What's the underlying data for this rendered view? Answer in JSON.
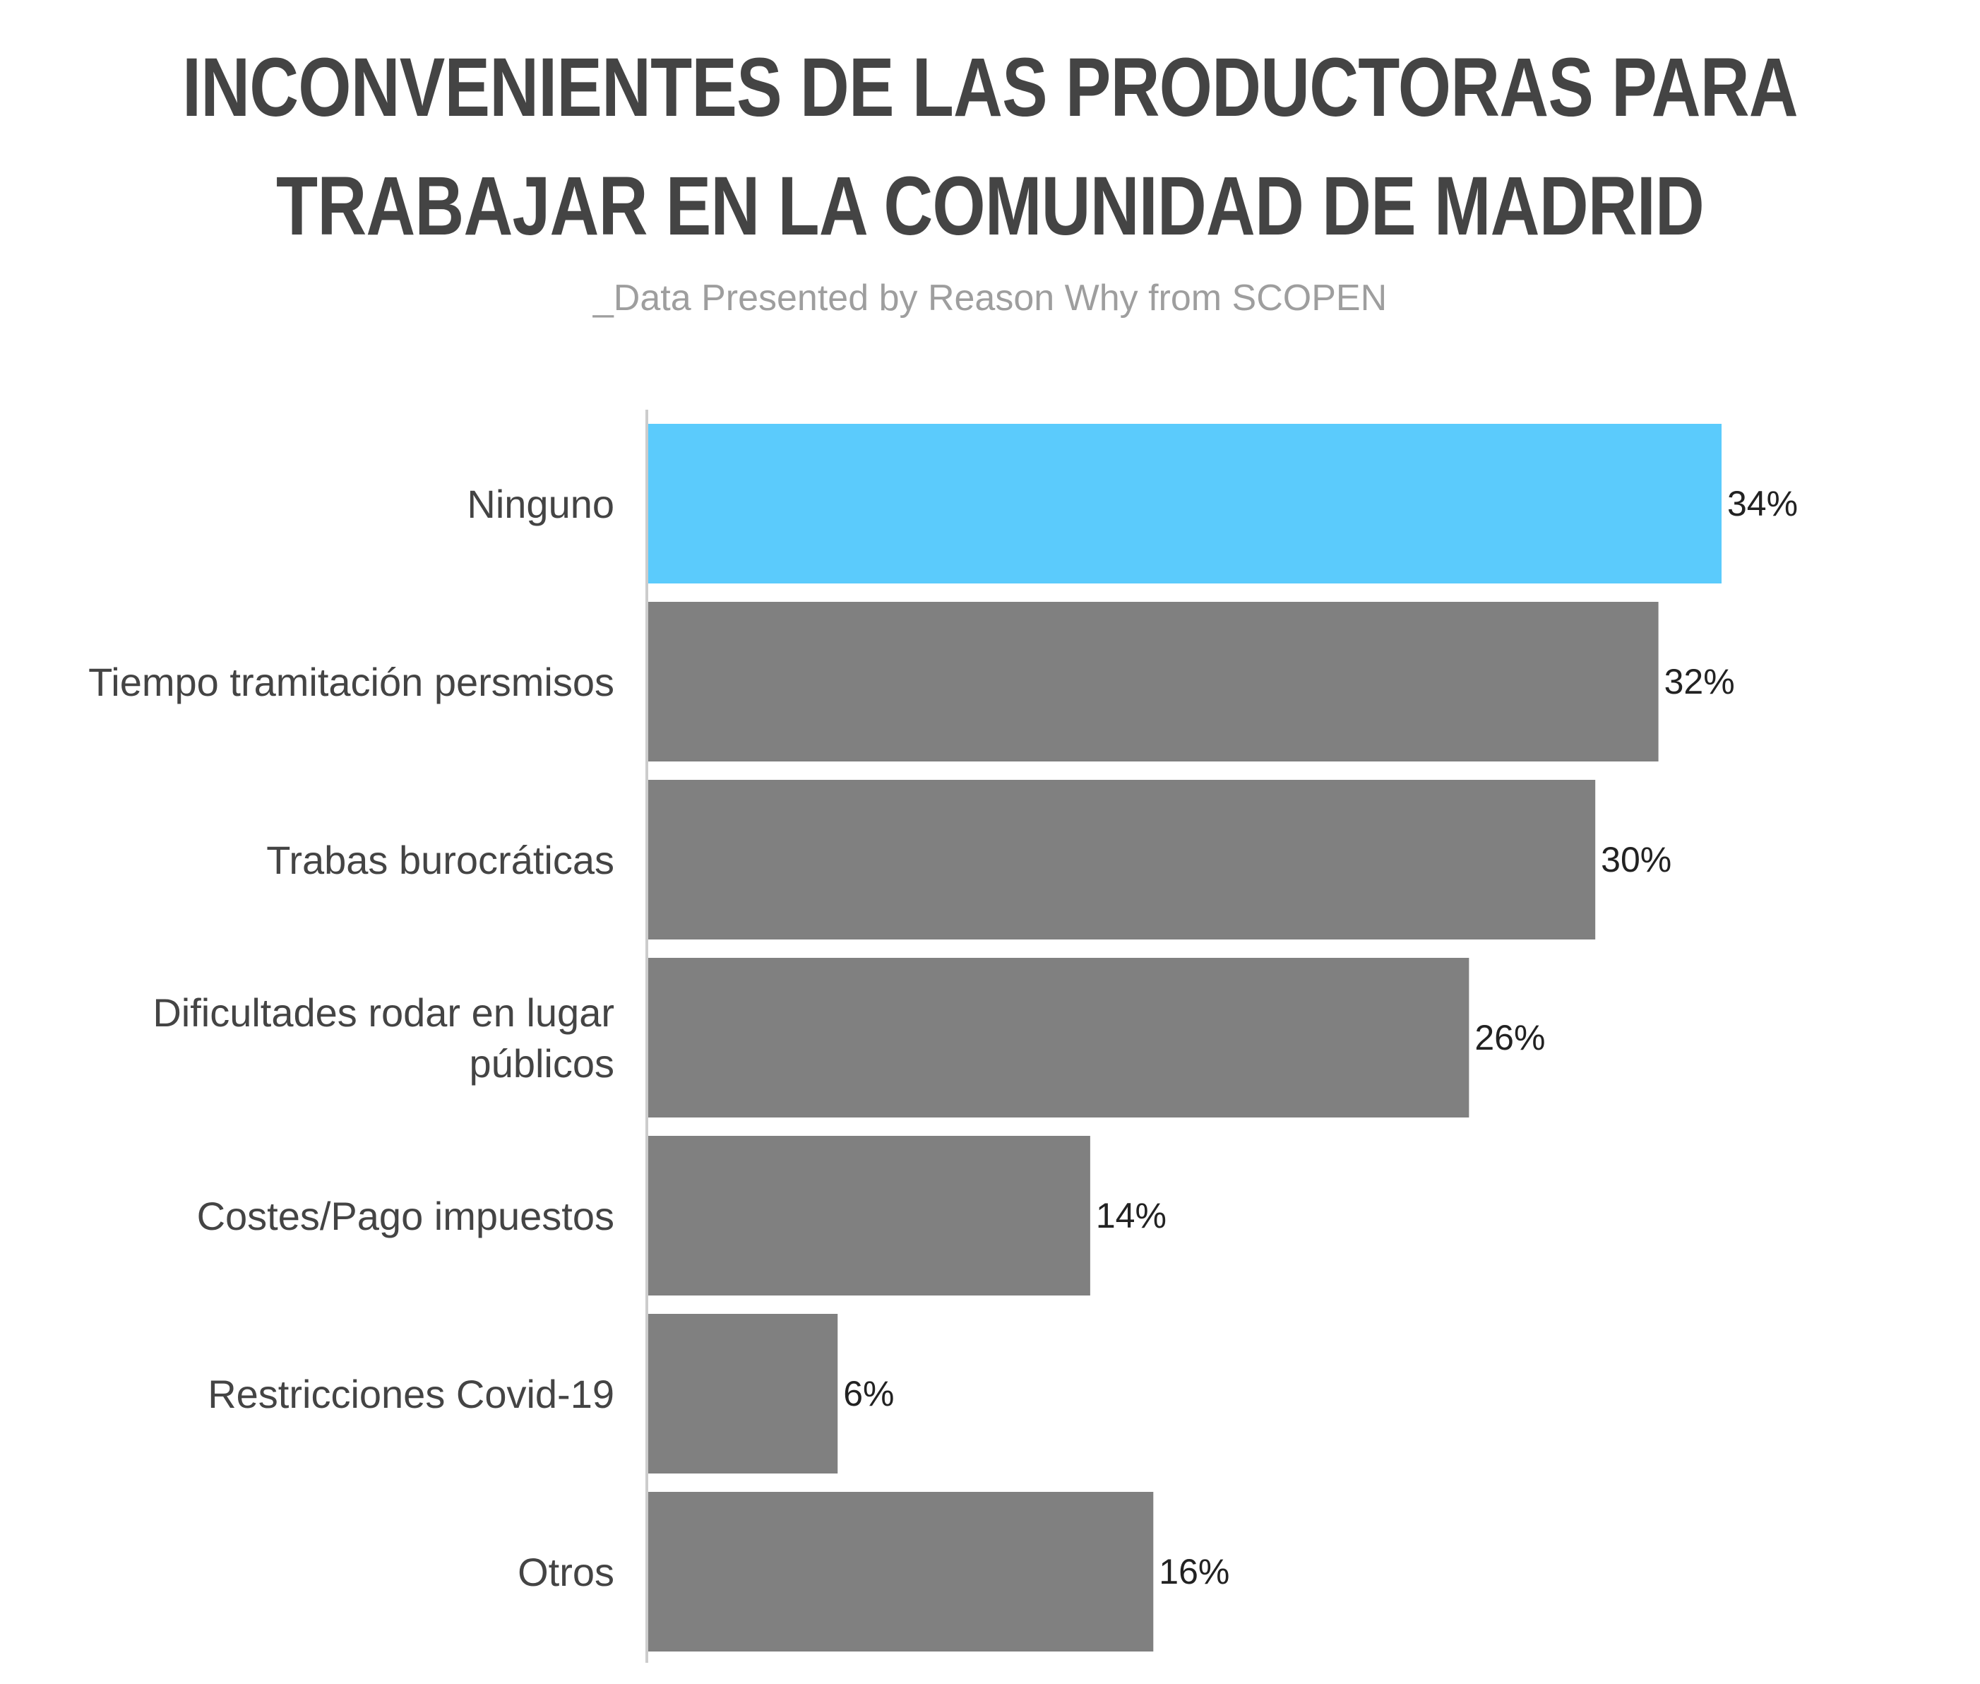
{
  "title_lines": [
    "INCONVENIENTES DE LAS PRODUCTORAS PARA",
    "TRABAJAR EN LA COMUNIDAD DE MADRID"
  ],
  "subtitle": "_Data Presented by Reason Why from SCOPEN",
  "colors": {
    "highlight": "#5bcbfc",
    "bar": "#808080",
    "axis": "#cccccc"
  },
  "chart_data": {
    "type": "bar",
    "orientation": "horizontal",
    "title": "INCONVENIENTES DE LAS PRODUCTORAS PARA TRABAJAR EN LA COMUNIDAD DE MADRID",
    "subtitle": "_Data Presented by Reason Why from SCOPEN",
    "categories": [
      [
        "Ninguno"
      ],
      [
        "Tiempo tramitación persmisos"
      ],
      [
        "Trabas burocráticas"
      ],
      [
        "Dificultades rodar en lugar",
        "públicos"
      ],
      [
        "Costes/Pago impuestos"
      ],
      [
        "Restricciones Covid-19"
      ],
      [
        "Otros"
      ]
    ],
    "values": [
      34,
      32,
      30,
      26,
      14,
      6,
      16
    ],
    "value_labels": [
      "34%",
      "32%",
      "30%",
      "26%",
      "14%",
      "6%",
      "16%"
    ],
    "highlight_index": 0,
    "unit": "%",
    "xlim": [
      0,
      34
    ],
    "grid": false,
    "legend": "none"
  }
}
